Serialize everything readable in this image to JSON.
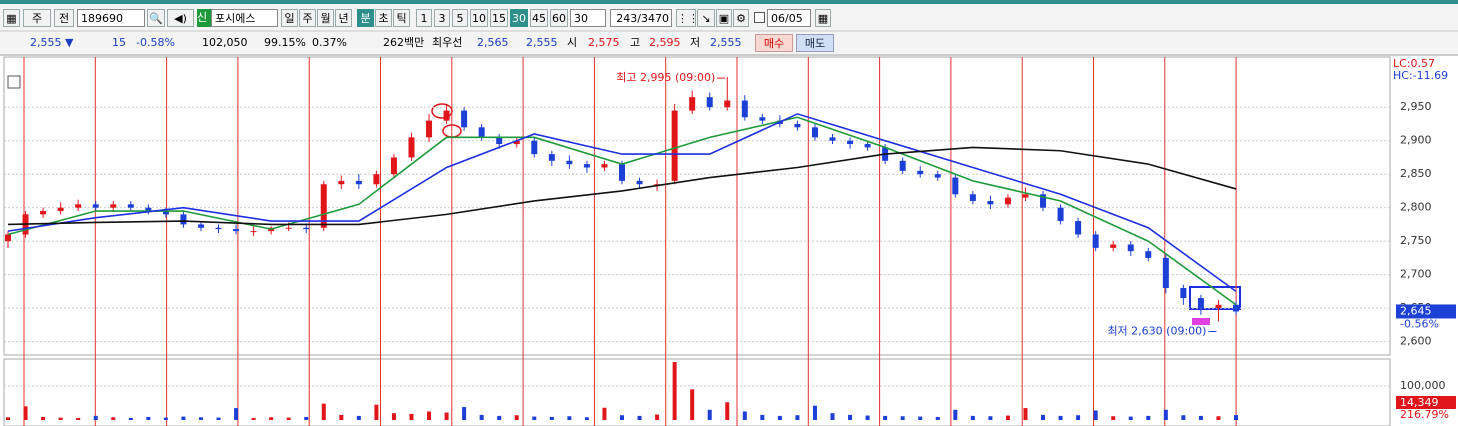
{
  "toolbar": {
    "market": "주",
    "prev": "전",
    "code": "189690",
    "new": "신",
    "name": "포시에스",
    "periods": [
      "일",
      "주",
      "월",
      "년"
    ],
    "units": [
      "분",
      "초",
      "틱"
    ],
    "minutes": [
      "1",
      "3",
      "5",
      "10",
      "15",
      "30",
      "45",
      "60"
    ],
    "interval": "30",
    "count": "243/3470",
    "date": "06/05"
  },
  "quote": {
    "price": "2,555 ▼",
    "change": "15",
    "change_rate": "-0.58%",
    "volume": "102,050",
    "vol_ratio": "99.15%",
    "turnover_rate": "0.37%",
    "amount": "262백만",
    "best_label": "최우선",
    "ask": "2,565",
    "bid": "2,555",
    "open_label": "시",
    "open": "2,575",
    "high_label": "고",
    "high": "2,595",
    "low_label": "저",
    "low": "2,555",
    "buy": "매수",
    "sell": "매도"
  },
  "chart_data": [
    {
      "type": "candlestick",
      "up_color": "#e0161b",
      "down_color": "#1c3fd6",
      "open": [
        2750,
        2760,
        2790,
        2795,
        2800,
        2805,
        2800,
        2805,
        2800,
        2795,
        2790,
        2775,
        2770,
        2768,
        2765,
        2765,
        2770,
        2770,
        2770,
        2835,
        2840,
        2835,
        2850,
        2875,
        2905,
        2930,
        2945,
        2920,
        2905,
        2895,
        2900,
        2880,
        2870,
        2865,
        2860,
        2865,
        2840,
        2835,
        2840,
        2945,
        2965,
        2950,
        2960,
        2935,
        2930,
        2925,
        2920,
        2905,
        2900,
        2895,
        2890,
        2870,
        2855,
        2850,
        2845,
        2820,
        2810,
        2805,
        2815,
        2820,
        2800,
        2780,
        2760,
        2740,
        2745,
        2735,
        2725,
        2680,
        2665,
        2650,
        2655
      ],
      "high": [
        2765,
        2795,
        2800,
        2808,
        2812,
        2810,
        2810,
        2810,
        2805,
        2800,
        2795,
        2780,
        2775,
        2775,
        2772,
        2772,
        2778,
        2776,
        2840,
        2848,
        2850,
        2855,
        2880,
        2912,
        2940,
        2955,
        2950,
        2925,
        2910,
        2905,
        2905,
        2885,
        2878,
        2870,
        2870,
        2870,
        2845,
        2842,
        2955,
        2975,
        2972,
        2995,
        2968,
        2940,
        2938,
        2930,
        2925,
        2910,
        2905,
        2900,
        2895,
        2875,
        2862,
        2855,
        2850,
        2825,
        2818,
        2820,
        2830,
        2825,
        2805,
        2785,
        2765,
        2750,
        2750,
        2740,
        2730,
        2685,
        2670,
        2662,
        2660
      ],
      "low": [
        2740,
        2755,
        2785,
        2790,
        2795,
        2795,
        2795,
        2795,
        2790,
        2785,
        2770,
        2765,
        2762,
        2760,
        2758,
        2760,
        2765,
        2762,
        2765,
        2828,
        2828,
        2830,
        2845,
        2870,
        2898,
        2925,
        2915,
        2900,
        2888,
        2890,
        2875,
        2862,
        2858,
        2852,
        2855,
        2835,
        2828,
        2825,
        2835,
        2940,
        2945,
        2945,
        2930,
        2925,
        2920,
        2915,
        2900,
        2895,
        2888,
        2885,
        2865,
        2850,
        2845,
        2840,
        2815,
        2805,
        2798,
        2800,
        2810,
        2795,
        2775,
        2755,
        2735,
        2735,
        2728,
        2720,
        2672,
        2655,
        2640,
        2630,
        2640
      ],
      "close": [
        2760,
        2790,
        2795,
        2800,
        2805,
        2800,
        2805,
        2800,
        2795,
        2790,
        2775,
        2770,
        2768,
        2765,
        2765,
        2770,
        2770,
        2768,
        2835,
        2840,
        2835,
        2850,
        2875,
        2905,
        2930,
        2945,
        2920,
        2905,
        2895,
        2900,
        2880,
        2870,
        2865,
        2860,
        2865,
        2840,
        2835,
        2835,
        2945,
        2965,
        2950,
        2960,
        2935,
        2930,
        2925,
        2920,
        2905,
        2900,
        2895,
        2890,
        2870,
        2855,
        2850,
        2845,
        2820,
        2810,
        2805,
        2815,
        2820,
        2800,
        2780,
        2760,
        2740,
        2745,
        2735,
        2725,
        2680,
        2665,
        2650,
        2655,
        2645
      ],
      "line_x": [
        0,
        5,
        10,
        15,
        20,
        25,
        30,
        35,
        40,
        45,
        50,
        55,
        60,
        65,
        70
      ],
      "lines": [
        {
          "color": "#1f9a3a",
          "values": [
            2760,
            2795,
            2795,
            2768,
            2805,
            2905,
            2905,
            2865,
            2905,
            2935,
            2890,
            2840,
            2810,
            2750,
            2655
          ]
        },
        {
          "color": "#1d2fe0",
          "values": [
            2765,
            2785,
            2800,
            2780,
            2780,
            2860,
            2910,
            2880,
            2880,
            2940,
            2900,
            2860,
            2820,
            2770,
            2675
          ]
        },
        {
          "color": "#111111",
          "values": [
            2775,
            2778,
            2780,
            2775,
            2775,
            2790,
            2810,
            2825,
            2845,
            2860,
            2880,
            2890,
            2885,
            2865,
            2828
          ]
        }
      ],
      "ylim": [
        2580,
        3025
      ],
      "yticks": [
        {
          "value": 2600,
          "label": "2,600"
        },
        {
          "value": 2650,
          "label": "2,650"
        },
        {
          "value": 2700,
          "label": "2,700"
        },
        {
          "value": 2750,
          "label": "2,750"
        },
        {
          "value": 2800,
          "label": "2,800"
        },
        {
          "value": 2850,
          "label": "2,850"
        },
        {
          "value": 2900,
          "label": "2,900"
        },
        {
          "value": 2950,
          "label": "2,950"
        }
      ],
      "grid": true,
      "high_annotation": "최고 2,995 (09:00)",
      "low_annotation": "최저 2,630 (09:00)",
      "lc": "LC:0.57",
      "hc": "HC:-11.69",
      "last_price": {
        "value": 2645,
        "label": "2,645"
      },
      "last_change": "-0.56%"
    },
    {
      "type": "bar",
      "up_color": "#e0161b",
      "down_color": "#1c3fd6",
      "values": [
        8000,
        40000,
        9000,
        7000,
        6000,
        12000,
        8000,
        6000,
        9000,
        7000,
        10000,
        8000,
        7000,
        35000,
        6000,
        8000,
        7000,
        9000,
        48000,
        15000,
        12000,
        45000,
        20000,
        18000,
        25000,
        22000,
        38000,
        15000,
        12000,
        14000,
        10000,
        9000,
        11000,
        8000,
        36000,
        14000,
        12000,
        16000,
        170000,
        90000,
        30000,
        52000,
        25000,
        15000,
        12000,
        14000,
        42000,
        20000,
        15000,
        13000,
        12000,
        11000,
        10000,
        9000,
        30000,
        12000,
        11000,
        13000,
        35000,
        15000,
        12000,
        14000,
        28000,
        11000,
        10000,
        12000,
        30000,
        14000,
        12000,
        11000,
        14349
      ],
      "value_labels_last": "14,349",
      "ylim": [
        0,
        176000
      ],
      "yticks": [
        {
          "value": 100000,
          "label": "100,000"
        }
      ],
      "grid": true,
      "ratio": "216.79%"
    }
  ]
}
